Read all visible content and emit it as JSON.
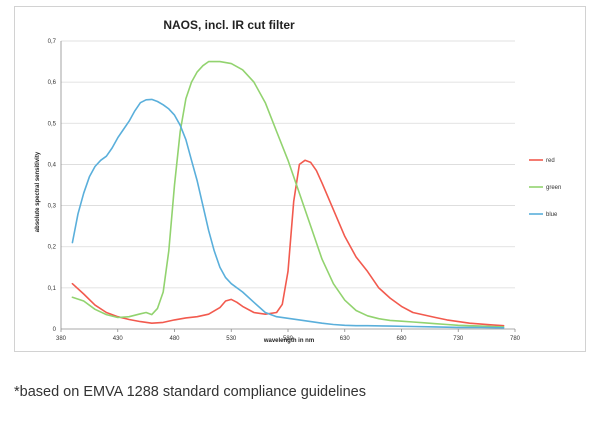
{
  "footnote": "*based on EMVA 1288 standard compliance guidelines",
  "colors": {
    "red": "#f25a4e",
    "green": "#92d36f",
    "blue": "#5aafdb",
    "grid": "#d9d9d9",
    "axis": "#8c8c8c"
  },
  "chart_data": {
    "type": "line",
    "title": "NAOS, incl. IR cut filter",
    "xlabel": "wavelength in nm",
    "ylabel": "absolute spectral sensitivity",
    "xlim": [
      380,
      780
    ],
    "ylim": [
      0,
      0.7
    ],
    "xticks": [
      380,
      430,
      480,
      530,
      580,
      630,
      680,
      730,
      780
    ],
    "yticks": [
      0,
      0.1,
      0.2,
      0.3,
      0.4,
      0.5,
      0.6,
      0.7
    ],
    "xtick_labels": [
      "380",
      "430",
      "480",
      "530",
      "580",
      "630",
      "680",
      "730",
      "780"
    ],
    "ytick_labels": [
      "0",
      "0,1",
      "0,2",
      "0,3",
      "0,4",
      "0,5",
      "0,6",
      "0,7"
    ],
    "grid": "horizontal",
    "legend_position": "right",
    "series": [
      {
        "name": "red",
        "x": [
          390,
          400,
          410,
          420,
          430,
          440,
          450,
          460,
          470,
          480,
          490,
          500,
          510,
          520,
          525,
          530,
          535,
          540,
          550,
          560,
          570,
          575,
          580,
          585,
          590,
          595,
          600,
          605,
          610,
          620,
          630,
          640,
          650,
          660,
          670,
          680,
          690,
          700,
          710,
          720,
          730,
          740,
          750,
          760,
          770
        ],
        "y": [
          0.11,
          0.085,
          0.058,
          0.04,
          0.03,
          0.023,
          0.018,
          0.014,
          0.016,
          0.022,
          0.027,
          0.03,
          0.036,
          0.052,
          0.068,
          0.072,
          0.065,
          0.055,
          0.04,
          0.036,
          0.04,
          0.06,
          0.14,
          0.31,
          0.4,
          0.41,
          0.405,
          0.385,
          0.355,
          0.29,
          0.225,
          0.175,
          0.14,
          0.1,
          0.075,
          0.055,
          0.04,
          0.034,
          0.028,
          0.022,
          0.018,
          0.014,
          0.012,
          0.01,
          0.008
        ]
      },
      {
        "name": "green",
        "x": [
          390,
          400,
          410,
          420,
          430,
          440,
          450,
          455,
          460,
          465,
          470,
          475,
          480,
          485,
          490,
          495,
          500,
          505,
          510,
          515,
          520,
          530,
          540,
          550,
          560,
          570,
          580,
          590,
          600,
          610,
          620,
          630,
          640,
          650,
          660,
          670,
          680,
          690,
          700,
          710,
          720,
          730,
          740,
          750,
          760,
          770
        ],
        "y": [
          0.077,
          0.068,
          0.048,
          0.035,
          0.028,
          0.03,
          0.037,
          0.04,
          0.035,
          0.05,
          0.09,
          0.19,
          0.35,
          0.48,
          0.56,
          0.6,
          0.625,
          0.64,
          0.65,
          0.65,
          0.65,
          0.645,
          0.63,
          0.6,
          0.55,
          0.48,
          0.41,
          0.33,
          0.25,
          0.17,
          0.11,
          0.07,
          0.045,
          0.032,
          0.025,
          0.021,
          0.019,
          0.017,
          0.015,
          0.013,
          0.011,
          0.009,
          0.008,
          0.007,
          0.006,
          0.005
        ]
      },
      {
        "name": "blue",
        "x": [
          390,
          395,
          400,
          405,
          410,
          415,
          420,
          425,
          430,
          435,
          440,
          445,
          450,
          455,
          460,
          465,
          470,
          475,
          480,
          485,
          490,
          495,
          500,
          505,
          510,
          515,
          520,
          525,
          530,
          540,
          550,
          560,
          570,
          580,
          590,
          600,
          610,
          620,
          630,
          640,
          650,
          670,
          690,
          710,
          730,
          750,
          770
        ],
        "y": [
          0.21,
          0.28,
          0.33,
          0.37,
          0.395,
          0.41,
          0.42,
          0.44,
          0.465,
          0.485,
          0.505,
          0.53,
          0.55,
          0.557,
          0.558,
          0.553,
          0.545,
          0.535,
          0.52,
          0.495,
          0.46,
          0.41,
          0.36,
          0.3,
          0.24,
          0.19,
          0.15,
          0.125,
          0.11,
          0.09,
          0.065,
          0.04,
          0.03,
          0.026,
          0.022,
          0.018,
          0.014,
          0.011,
          0.009,
          0.008,
          0.008,
          0.007,
          0.006,
          0.005,
          0.004,
          0.004,
          0.003
        ]
      }
    ]
  }
}
